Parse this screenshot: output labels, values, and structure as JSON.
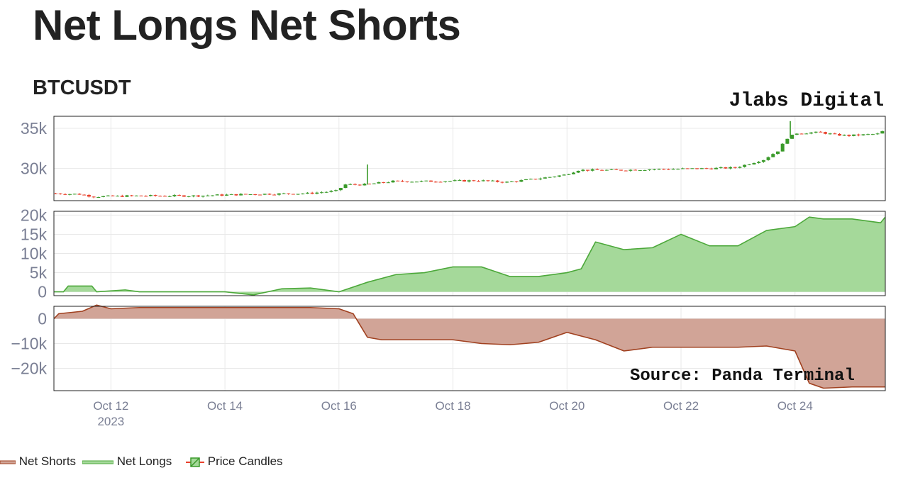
{
  "header": {
    "title": "Net Longs Net Shorts",
    "subtitle": "BTCUSDT",
    "brand": "Jlabs Digital",
    "source": "Source: Panda Terminal"
  },
  "colors": {
    "up": "#3a9a2a",
    "down": "#e8412c",
    "longs_fill": "#a5d99a",
    "longs_line": "#4ca83a",
    "shorts_fill": "#d1a497",
    "shorts_line": "#a0401f",
    "grid": "#e8e8e8",
    "frame": "#222222"
  },
  "legend": [
    {
      "label": "Net Shorts",
      "icon": "net-shorts-legend-icon"
    },
    {
      "label": "Net Longs",
      "icon": "net-longs-legend-icon"
    },
    {
      "label": "Price Candles",
      "icon": "price-candles-legend-icon"
    }
  ],
  "chart_data": [
    {
      "type": "candlestick",
      "name": "Price Candles",
      "xaxis": {
        "range": [
          "2023-10-11",
          "2023-10-25 14:00"
        ],
        "ticks": [
          "Oct 12",
          "Oct 14",
          "Oct 16",
          "Oct 18",
          "Oct 20",
          "Oct 22",
          "Oct 24"
        ],
        "year_label": "2023"
      },
      "yaxis": {
        "range": [
          26000,
          36500
        ],
        "ticks": [
          30000,
          35000
        ],
        "tick_labels": [
          "30k",
          "35k"
        ]
      },
      "points": [
        [
          "2023-10-11 00:00",
          26900
        ],
        [
          "2023-10-11 12:00",
          26800
        ],
        [
          "2023-10-11 18:00",
          26500
        ],
        [
          "2023-10-12 12:00",
          26600
        ],
        [
          "2023-10-13 12:00",
          26600
        ],
        [
          "2023-10-14 12:00",
          26800
        ],
        [
          "2023-10-15 12:00",
          26900
        ],
        [
          "2023-10-16 00:00",
          27200
        ],
        [
          "2023-10-16 04:00",
          28000
        ],
        [
          "2023-10-16 12:00",
          28000
        ],
        [
          "2023-10-17 00:00",
          28400
        ],
        [
          "2023-10-17 12:00",
          28400
        ],
        [
          "2023-10-18 12:00",
          28500
        ],
        [
          "2023-10-19 00:00",
          28300
        ],
        [
          "2023-10-19 12:00",
          28700
        ],
        [
          "2023-10-20 00:00",
          29200
        ],
        [
          "2023-10-20 06:00",
          29800
        ],
        [
          "2023-10-21 00:00",
          29800
        ],
        [
          "2023-10-21 12:00",
          29900
        ],
        [
          "2023-10-22 12:00",
          30000
        ],
        [
          "2023-10-23 00:00",
          30100
        ],
        [
          "2023-10-23 12:00",
          31100
        ],
        [
          "2023-10-23 18:00",
          32200
        ],
        [
          "2023-10-23 22:00",
          33800
        ],
        [
          "2023-10-24 02:00",
          34400
        ],
        [
          "2023-10-24 12:00",
          34500
        ],
        [
          "2023-10-24 18:00",
          34200
        ],
        [
          "2023-10-25 00:00",
          34100
        ],
        [
          "2023-10-25 12:00",
          34300
        ],
        [
          "2023-10-25 14:00",
          34600
        ]
      ],
      "spikes": [
        [
          "2023-10-16 12:00",
          30500
        ],
        [
          "2023-10-23 22:00",
          35900
        ]
      ]
    },
    {
      "type": "area",
      "name": "Net Longs",
      "yaxis": {
        "range": [
          -1000,
          21000
        ],
        "ticks": [
          0,
          5000,
          10000,
          15000,
          20000
        ],
        "tick_labels": [
          "0",
          "5k",
          "10k",
          "15k",
          "20k"
        ]
      },
      "x": [
        "2023-10-11 00:00",
        "2023-10-11 04:00",
        "2023-10-11 06:00",
        "2023-10-11 16:00",
        "2023-10-11 18:00",
        "2023-10-12 06:00",
        "2023-10-12 12:00",
        "2023-10-12 18:00",
        "2023-10-13 00:00",
        "2023-10-13 12:00",
        "2023-10-14 00:00",
        "2023-10-14 12:00",
        "2023-10-15 00:00",
        "2023-10-15 12:00",
        "2023-10-16 00:00",
        "2023-10-16 12:00",
        "2023-10-17 00:00",
        "2023-10-17 12:00",
        "2023-10-18 00:00",
        "2023-10-18 12:00",
        "2023-10-19 00:00",
        "2023-10-19 12:00",
        "2023-10-20 00:00",
        "2023-10-20 06:00",
        "2023-10-20 12:00",
        "2023-10-21 00:00",
        "2023-10-21 12:00",
        "2023-10-22 00:00",
        "2023-10-22 12:00",
        "2023-10-23 00:00",
        "2023-10-23 12:00",
        "2023-10-24 00:00",
        "2023-10-24 06:00",
        "2023-10-24 12:00",
        "2023-10-25 00:00",
        "2023-10-25 12:00",
        "2023-10-25 14:00"
      ],
      "values": [
        0,
        0,
        1500,
        1500,
        0,
        500,
        0,
        0,
        0,
        0,
        0,
        -800,
        800,
        1000,
        0,
        2500,
        4500,
        5000,
        6500,
        6500,
        4000,
        4000,
        5000,
        6000,
        13000,
        11000,
        11500,
        15000,
        12000,
        12000,
        16000,
        17000,
        19500,
        19000,
        19000,
        18000,
        19500
      ]
    },
    {
      "type": "area",
      "name": "Net Shorts",
      "yaxis": {
        "range": [
          -29000,
          5000
        ],
        "ticks": [
          0,
          -10000,
          -20000
        ],
        "tick_labels": [
          "0",
          "−10k",
          "−20k"
        ]
      },
      "x": [
        "2023-10-11 00:00",
        "2023-10-11 02:00",
        "2023-10-11 12:00",
        "2023-10-11 18:00",
        "2023-10-12 00:00",
        "2023-10-12 12:00",
        "2023-10-13 00:00",
        "2023-10-14 00:00",
        "2023-10-14 12:00",
        "2023-10-15 00:00",
        "2023-10-15 12:00",
        "2023-10-16 00:00",
        "2023-10-16 06:00",
        "2023-10-16 12:00",
        "2023-10-16 18:00",
        "2023-10-17 00:00",
        "2023-10-17 12:00",
        "2023-10-18 00:00",
        "2023-10-18 12:00",
        "2023-10-19 00:00",
        "2023-10-19 12:00",
        "2023-10-20 00:00",
        "2023-10-20 12:00",
        "2023-10-21 00:00",
        "2023-10-21 12:00",
        "2023-10-22 00:00",
        "2023-10-22 12:00",
        "2023-10-23 00:00",
        "2023-10-23 12:00",
        "2023-10-24 00:00",
        "2023-10-24 06:00",
        "2023-10-24 12:00",
        "2023-10-25 00:00",
        "2023-10-25 14:00"
      ],
      "values": [
        0,
        2000,
        3000,
        5500,
        4000,
        4500,
        4500,
        4500,
        4500,
        4500,
        4500,
        4000,
        2000,
        -7500,
        -8500,
        -8500,
        -8500,
        -8500,
        -10000,
        -10500,
        -9500,
        -5500,
        -8500,
        -13000,
        -11500,
        -11500,
        -11500,
        -11500,
        -11000,
        -13000,
        -26000,
        -28000,
        -27500,
        -27500
      ]
    }
  ]
}
